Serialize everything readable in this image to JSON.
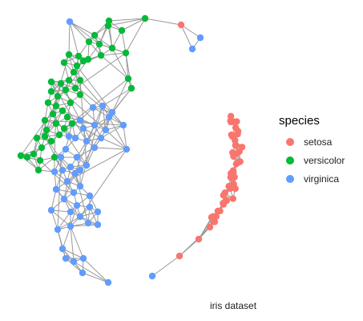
{
  "chart_data": {
    "type": "network",
    "title": "",
    "caption": "iris dataset",
    "edge_color": "#999999",
    "legend": {
      "title": "species",
      "placement": "right",
      "entries": [
        {
          "label": "setosa",
          "color": "#F8766D"
        },
        {
          "label": "versicolor",
          "color": "#00BA38"
        },
        {
          "label": "virginica",
          "color": "#619CFF"
        }
      ]
    },
    "node_counts": {
      "setosa": 50,
      "versicolor": 50,
      "virginica": 50
    }
  }
}
